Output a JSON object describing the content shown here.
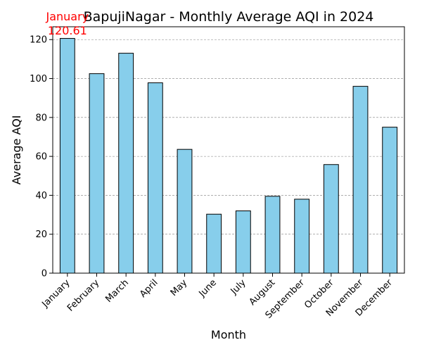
{
  "chart_data": {
    "type": "bar",
    "title": "BapujiNagar - Monthly Average AQI in 2024",
    "xlabel": "Month",
    "ylabel": "Average AQI",
    "categories": [
      "January",
      "February",
      "March",
      "April",
      "May",
      "June",
      "July",
      "August",
      "September",
      "October",
      "November",
      "December"
    ],
    "values": [
      120.61,
      102.5,
      113.0,
      97.8,
      63.6,
      30.3,
      32.0,
      39.5,
      38.0,
      55.8,
      96.0,
      75.0
    ],
    "ylim": [
      0,
      126.6
    ],
    "yticks": [
      "0",
      "20",
      "40",
      "60",
      "80",
      "100",
      "120"
    ],
    "grid": true,
    "bar_color": "#87ceeb",
    "bar_edge_color": "#000000",
    "annotation": {
      "category": "January",
      "label": "January",
      "value_text": "120.61",
      "color": "#ff0000"
    }
  }
}
